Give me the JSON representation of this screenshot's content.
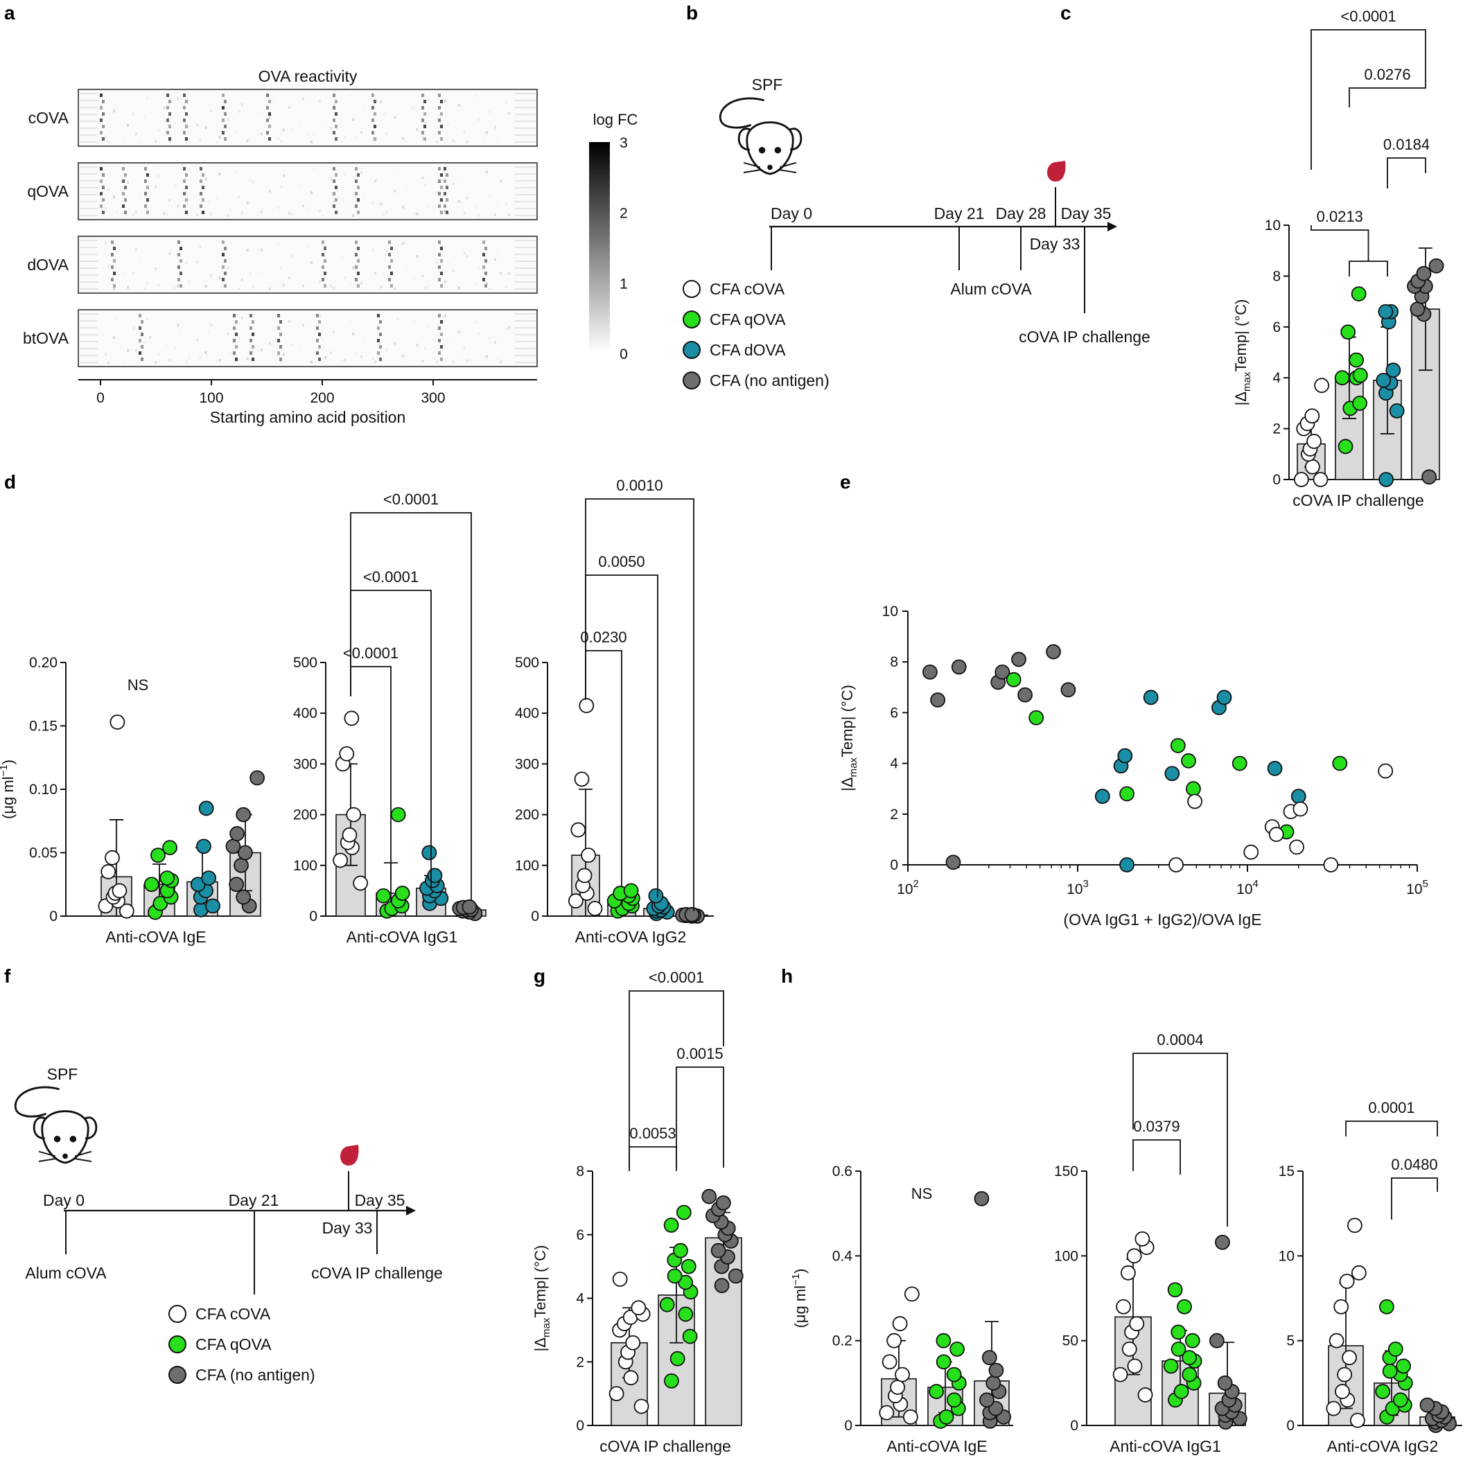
{
  "colors": {
    "cOVA": "#ffffff",
    "qOVA": "#27e01b",
    "dOVA": "#1a8ea4",
    "none": "#6e6e6e",
    "bar": "#d9d9d9",
    "blood": "#c0203a"
  },
  "panels": {
    "a": "a",
    "b": "b",
    "c": "c",
    "d": "d",
    "e": "e",
    "f": "f",
    "g": "g",
    "h": "h"
  },
  "chart_data": [
    {
      "id": "a",
      "type": "heatmap",
      "title": "OVA reactivity",
      "xlabel": "Starting amino acid position",
      "xticks": [
        "0",
        "100",
        "200",
        "300"
      ],
      "xlim": [
        -20,
        392
      ],
      "rows": [
        "cOVA",
        "qOVA",
        "dOVA",
        "btOVA"
      ],
      "colorbar": {
        "label": "log FC",
        "ticks": [
          "0",
          "1",
          "2",
          "3"
        ],
        "range": [
          0,
          3
        ]
      },
      "hotspots": {
        "cOVA": [
          0,
          60,
          75,
          110,
          150,
          210,
          245,
          290,
          305
        ],
        "qOVA": [
          0,
          20,
          40,
          75,
          90,
          210,
          230,
          305,
          310
        ],
        "dOVA": [
          10,
          70,
          110,
          200,
          230,
          260,
          305,
          345
        ],
        "btOVA": [
          35,
          120,
          135,
          160,
          195,
          250,
          305
        ]
      }
    },
    {
      "id": "b",
      "type": "timeline",
      "mouse_label": "SPF",
      "days_top": [
        "Day 0",
        "Day 21",
        "Day 28",
        "Day 35"
      ],
      "day_below": "Day 33",
      "events": [
        "Alum cOVA",
        "cOVA IP challenge"
      ],
      "legend": [
        "CFA cOVA",
        "CFA qOVA",
        "CFA dOVA",
        "CFA (no antigen)"
      ]
    },
    {
      "id": "c",
      "type": "bar",
      "xlabel": "cOVA IP challenge",
      "ylabel_main": "|Δ",
      "ylabel_sub": "max",
      "ylabel_rest": "Temp| (°C)",
      "ylim": [
        0,
        10
      ],
      "yticks": [
        "0",
        "2",
        "4",
        "6",
        "8",
        "10"
      ],
      "groups": [
        {
          "color": "cOVA",
          "mean": 1.4,
          "sd": 0.9,
          "points": [
            0.0,
            0.0,
            0.5,
            1.0,
            1.2,
            1.5,
            2.0,
            2.2,
            2.5,
            3.7
          ]
        },
        {
          "color": "qOVA",
          "mean": 4.0,
          "sd": 1.6,
          "points": [
            1.3,
            2.8,
            3.0,
            4.0,
            4.0,
            4.1,
            4.7,
            5.8,
            7.3
          ]
        },
        {
          "color": "dOVA",
          "mean": 3.9,
          "sd": 2.1,
          "points": [
            0.0,
            2.7,
            3.4,
            3.8,
            3.9,
            4.3,
            6.2,
            6.6,
            6.6
          ]
        },
        {
          "color": "none",
          "mean": 6.7,
          "sd": 2.4,
          "points": [
            0.1,
            6.5,
            6.7,
            7.2,
            7.6,
            7.6,
            7.8,
            8.1,
            8.4
          ]
        }
      ],
      "comparisons": [
        {
          "g1": 0,
          "g2": 3,
          "p": "<0.0001"
        },
        {
          "g1": 1,
          "g2": 3,
          "p": "0.0276"
        },
        {
          "g1": 2,
          "g2": 3,
          "p": "0.0184"
        },
        {
          "g1": 0,
          "g2a": 1,
          "g2b": 2,
          "p": "0.0213"
        }
      ]
    },
    {
      "id": "d1",
      "type": "bar",
      "xlabel": "Anti-cOVA IgE",
      "ylabel_main": "(μg ml",
      "ylabel_sup": "−1",
      "ylabel_rest": ")",
      "ylim": [
        0,
        0.2
      ],
      "yticks": [
        "0",
        "0.05",
        "0.10",
        "0.15",
        "0.20"
      ],
      "ns": "NS",
      "groups": [
        {
          "color": "cOVA",
          "mean": 0.031,
          "sd": 0.045,
          "points": [
            0.004,
            0.008,
            0.012,
            0.015,
            0.018,
            0.02,
            0.035,
            0.046,
            0.153
          ]
        },
        {
          "color": "qOVA",
          "mean": 0.025,
          "sd": 0.016,
          "points": [
            0.003,
            0.01,
            0.015,
            0.02,
            0.025,
            0.028,
            0.03,
            0.048,
            0.054
          ]
        },
        {
          "color": "dOVA",
          "mean": 0.027,
          "sd": 0.027,
          "points": [
            0.005,
            0.008,
            0.015,
            0.02,
            0.025,
            0.03,
            0.055,
            0.085
          ]
        },
        {
          "color": "none",
          "mean": 0.05,
          "sd": 0.03,
          "points": [
            0.008,
            0.015,
            0.025,
            0.04,
            0.05,
            0.055,
            0.065,
            0.08,
            0.109
          ]
        }
      ]
    },
    {
      "id": "d2",
      "type": "bar",
      "xlabel": "Anti-cOVA IgG1",
      "ylim": [
        0,
        500
      ],
      "yticks": [
        "0",
        "100",
        "200",
        "300",
        "400",
        "500"
      ],
      "groups": [
        {
          "color": "cOVA",
          "mean": 200,
          "sd": 100,
          "points": [
            65,
            110,
            135,
            145,
            160,
            200,
            300,
            320,
            390
          ]
        },
        {
          "color": "qOVA",
          "mean": 45,
          "sd": 60,
          "points": [
            10,
            15,
            20,
            30,
            40,
            45,
            200
          ]
        },
        {
          "color": "dOVA",
          "mean": 55,
          "sd": 25,
          "points": [
            25,
            35,
            40,
            50,
            55,
            60,
            70,
            80,
            125
          ]
        },
        {
          "color": "none",
          "mean": 12,
          "sd": 5,
          "points": [
            5,
            8,
            10,
            12,
            13,
            15,
            17,
            18
          ]
        }
      ],
      "comparisons": [
        {
          "g1": 0,
          "g2": 1,
          "p": "<0.0001"
        },
        {
          "g1": 0,
          "g2": 2,
          "p": "<0.0001"
        },
        {
          "g1": 0,
          "g2": 3,
          "p": "<0.0001"
        }
      ]
    },
    {
      "id": "d3",
      "type": "bar",
      "xlabel": "Anti-cOVA IgG2",
      "ylim": [
        0,
        500
      ],
      "yticks": [
        "0",
        "100",
        "200",
        "300",
        "400",
        "500"
      ],
      "groups": [
        {
          "color": "cOVA",
          "mean": 120,
          "sd": 130,
          "points": [
            15,
            30,
            45,
            60,
            80,
            120,
            170,
            270,
            415
          ]
        },
        {
          "color": "qOVA",
          "mean": 30,
          "sd": 15,
          "points": [
            10,
            15,
            20,
            25,
            30,
            35,
            40,
            45,
            50
          ]
        },
        {
          "color": "dOVA",
          "mean": 15,
          "sd": 8,
          "points": [
            5,
            8,
            10,
            12,
            15,
            18,
            20,
            25,
            40
          ]
        },
        {
          "color": "none",
          "mean": 2,
          "sd": 1,
          "points": [
            0,
            0,
            1,
            1,
            2,
            2,
            3,
            3
          ]
        }
      ],
      "comparisons": [
        {
          "g1": 0,
          "g2": 1,
          "p": "0.0230"
        },
        {
          "g1": 0,
          "g2": 2,
          "p": "0.0050"
        },
        {
          "g1": 0,
          "g2": 3,
          "p": "0.0010"
        }
      ]
    },
    {
      "id": "e",
      "type": "scatter",
      "xlabel": "(OVA IgG1 + IgG2)/OVA IgE",
      "ylabel_main": "|Δ",
      "ylabel_sub": "max",
      "ylabel_rest": "Temp| (°C)",
      "xscale": "log",
      "xlim": [
        100,
        100000
      ],
      "xticks": [
        {
          "v": 100,
          "base": "10",
          "exp": "2"
        },
        {
          "v": 1000,
          "base": "10",
          "exp": "3"
        },
        {
          "v": 10000,
          "base": "10",
          "exp": "4"
        },
        {
          "v": 100000,
          "base": "10",
          "exp": "5"
        }
      ],
      "ylim": [
        0,
        10
      ],
      "yticks": [
        "0",
        "2",
        "4",
        "6",
        "8",
        "10"
      ],
      "points": [
        {
          "color": "none",
          "x": 135,
          "y": 7.6
        },
        {
          "color": "none",
          "x": 150,
          "y": 6.5
        },
        {
          "color": "none",
          "x": 200,
          "y": 7.8
        },
        {
          "color": "none",
          "x": 185,
          "y": 0.1
        },
        {
          "color": "none",
          "x": 340,
          "y": 7.2
        },
        {
          "color": "none",
          "x": 360,
          "y": 7.6
        },
        {
          "color": "none",
          "x": 450,
          "y": 8.1
        },
        {
          "color": "none",
          "x": 490,
          "y": 6.7
        },
        {
          "color": "none",
          "x": 720,
          "y": 8.4
        },
        {
          "color": "none",
          "x": 880,
          "y": 6.9
        },
        {
          "color": "qOVA",
          "x": 420,
          "y": 7.3
        },
        {
          "color": "qOVA",
          "x": 570,
          "y": 5.8
        },
        {
          "color": "qOVA",
          "x": 1950,
          "y": 2.8
        },
        {
          "color": "qOVA",
          "x": 3900,
          "y": 4.7
        },
        {
          "color": "qOVA",
          "x": 4500,
          "y": 4.1
        },
        {
          "color": "qOVA",
          "x": 4800,
          "y": 3.0
        },
        {
          "color": "qOVA",
          "x": 9000,
          "y": 4.0
        },
        {
          "color": "qOVA",
          "x": 17000,
          "y": 1.3
        },
        {
          "color": "qOVA",
          "x": 35000,
          "y": 4.0
        },
        {
          "color": "dOVA",
          "x": 1400,
          "y": 2.7
        },
        {
          "color": "dOVA",
          "x": 1800,
          "y": 3.9
        },
        {
          "color": "dOVA",
          "x": 1900,
          "y": 4.3
        },
        {
          "color": "dOVA",
          "x": 1950,
          "y": 0.0
        },
        {
          "color": "dOVA",
          "x": 2700,
          "y": 6.6
        },
        {
          "color": "dOVA",
          "x": 3600,
          "y": 3.6
        },
        {
          "color": "dOVA",
          "x": 6800,
          "y": 6.2
        },
        {
          "color": "dOVA",
          "x": 7300,
          "y": 6.6
        },
        {
          "color": "dOVA",
          "x": 14500,
          "y": 3.8
        },
        {
          "color": "dOVA",
          "x": 20000,
          "y": 2.7
        },
        {
          "color": "cOVA",
          "x": 3800,
          "y": 0.0
        },
        {
          "color": "cOVA",
          "x": 4900,
          "y": 2.5
        },
        {
          "color": "cOVA",
          "x": 10500,
          "y": 0.5
        },
        {
          "color": "cOVA",
          "x": 14000,
          "y": 1.5
        },
        {
          "color": "cOVA",
          "x": 14800,
          "y": 1.2
        },
        {
          "color": "cOVA",
          "x": 18000,
          "y": 2.1
        },
        {
          "color": "cOVA",
          "x": 19500,
          "y": 0.7
        },
        {
          "color": "cOVA",
          "x": 20500,
          "y": 2.2
        },
        {
          "color": "cOVA",
          "x": 31000,
          "y": 0.0
        },
        {
          "color": "cOVA",
          "x": 65000,
          "y": 3.7
        }
      ]
    },
    {
      "id": "f",
      "type": "timeline",
      "mouse_label": "SPF",
      "days_top": [
        "Day 0",
        "Day 21",
        "Day 35"
      ],
      "day_below": "Day 33",
      "events": [
        "Alum cOVA",
        "cOVA IP challenge"
      ],
      "legend": [
        "CFA cOVA",
        "CFA qOVA",
        "CFA (no antigen)"
      ]
    },
    {
      "id": "g",
      "type": "bar",
      "xlabel": "cOVA IP challenge",
      "ylabel_main": "|Δ",
      "ylabel_sub": "max",
      "ylabel_rest": "Temp| (°C)",
      "ylim": [
        0,
        8
      ],
      "yticks": [
        "0",
        "2",
        "4",
        "6",
        "8"
      ],
      "groups": [
        {
          "color": "cOVA",
          "mean": 2.6,
          "sd": 1.1,
          "points": [
            0.6,
            1.0,
            1.5,
            2.0,
            2.3,
            2.6,
            3.0,
            3.2,
            3.4,
            3.5,
            3.7,
            4.6
          ]
        },
        {
          "color": "qOVA",
          "mean": 4.1,
          "sd": 1.5,
          "points": [
            1.4,
            2.1,
            2.8,
            3.5,
            3.8,
            4.2,
            4.5,
            4.7,
            5.0,
            5.2,
            5.5,
            6.3,
            6.7
          ]
        },
        {
          "color": "none",
          "mean": 5.9,
          "sd": 0.8,
          "points": [
            4.4,
            4.7,
            5.0,
            5.3,
            5.5,
            5.8,
            6.0,
            6.2,
            6.4,
            6.6,
            6.8,
            7.0,
            7.2
          ]
        }
      ],
      "comparisons": [
        {
          "g1": 0,
          "g2": 1,
          "p": "0.0053"
        },
        {
          "g1": 1,
          "g2": 2,
          "p": "0.0015"
        },
        {
          "g1": 0,
          "g2": 2,
          "p": "<0.0001"
        }
      ]
    },
    {
      "id": "h1",
      "type": "bar",
      "xlabel": "Anti-cOVA IgE",
      "ylabel_main": "(μg ml",
      "ylabel_sup": "−1",
      "ylabel_rest": ")",
      "ylim": [
        0,
        0.6
      ],
      "yticks": [
        "0",
        "0.2",
        "0.4",
        "0.6"
      ],
      "ns": "NS",
      "groups": [
        {
          "color": "cOVA",
          "mean": 0.11,
          "sd": 0.09,
          "points": [
            0.02,
            0.03,
            0.05,
            0.07,
            0.09,
            0.12,
            0.15,
            0.2,
            0.24,
            0.31
          ]
        },
        {
          "color": "qOVA",
          "mean": 0.09,
          "sd": 0.06,
          "points": [
            0.01,
            0.02,
            0.04,
            0.06,
            0.08,
            0.1,
            0.12,
            0.15,
            0.18,
            0.2
          ]
        },
        {
          "color": "none",
          "mean": 0.105,
          "sd": 0.14,
          "points": [
            0.01,
            0.02,
            0.03,
            0.04,
            0.06,
            0.08,
            0.1,
            0.13,
            0.16,
            0.535
          ]
        }
      ]
    },
    {
      "id": "h2",
      "type": "bar",
      "xlabel": "Anti-cOVA IgG1",
      "ylim": [
        0,
        150
      ],
      "yticks": [
        "0",
        "50",
        "100",
        "150"
      ],
      "groups": [
        {
          "color": "cOVA",
          "mean": 64,
          "sd": 34,
          "points": [
            18,
            30,
            35,
            45,
            55,
            60,
            70,
            90,
            100,
            105,
            110
          ]
        },
        {
          "color": "qOVA",
          "mean": 38,
          "sd": 18,
          "points": [
            15,
            20,
            25,
            30,
            35,
            38,
            40,
            45,
            50,
            55,
            70,
            80
          ]
        },
        {
          "color": "none",
          "mean": 19,
          "sd": 30,
          "points": [
            2,
            4,
            6,
            8,
            10,
            12,
            15,
            20,
            25,
            50,
            108
          ]
        }
      ],
      "comparisons": [
        {
          "g1": 0,
          "g2": 1,
          "p": "0.0379"
        },
        {
          "g1": 0,
          "g2": 2,
          "p": "0.0004"
        }
      ]
    },
    {
      "id": "h3",
      "type": "bar",
      "xlabel": "Anti-cOVA IgG2",
      "ylim": [
        0,
        15
      ],
      "yticks": [
        "0",
        "5",
        "10",
        "15"
      ],
      "groups": [
        {
          "color": "cOVA",
          "mean": 4.7,
          "sd": 3.7,
          "points": [
            0.3,
            1.0,
            1.5,
            2.0,
            3.0,
            4.0,
            5.0,
            7.0,
            8.5,
            9.0,
            11.8
          ]
        },
        {
          "color": "qOVA",
          "mean": 2.5,
          "sd": 1.9,
          "points": [
            0.5,
            1.0,
            1.2,
            1.5,
            2.0,
            2.5,
            3.0,
            3.2,
            3.5,
            4.0,
            4.5,
            7.0
          ]
        },
        {
          "color": "none",
          "mean": 0.5,
          "sd": 0.4,
          "points": [
            0.0,
            0.1,
            0.2,
            0.3,
            0.4,
            0.5,
            0.6,
            0.8,
            1.0,
            1.2
          ]
        }
      ],
      "comparisons": [
        {
          "g1": 0,
          "g2": 2,
          "p": "0.0001"
        },
        {
          "g1": 1,
          "g2": 2,
          "p": "0.0480"
        }
      ]
    }
  ]
}
